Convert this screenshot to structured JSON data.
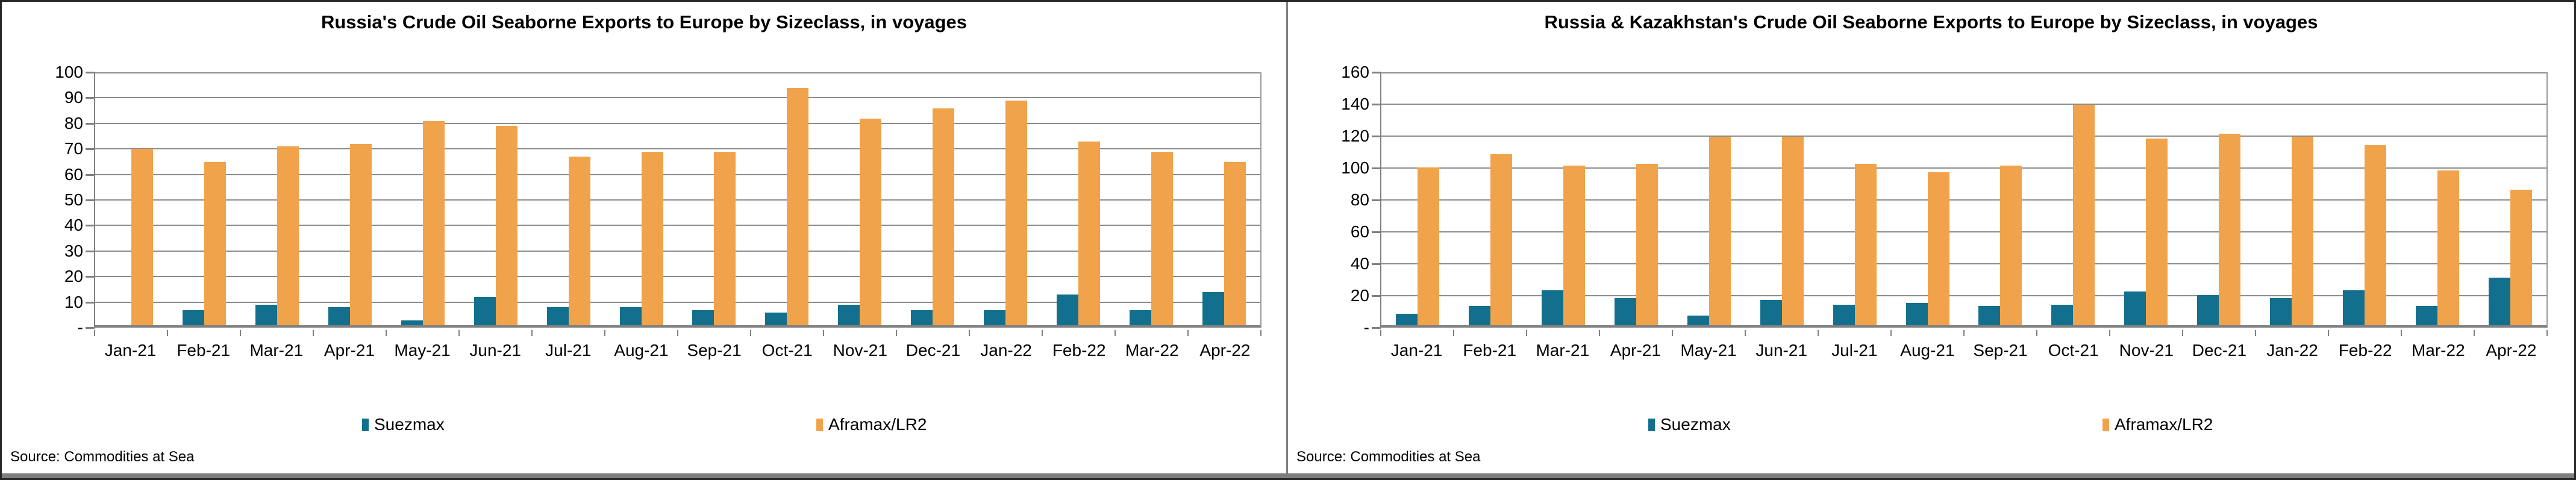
{
  "colors": {
    "suezmax": "#12708E",
    "aframax": "#F0A34A",
    "gridline": "#8C8C8C",
    "axis": "#808080"
  },
  "chart_data": [
    {
      "type": "bar",
      "title": "Russia's Crude Oil Seaborne Exports to Europe by Sizeclass, in voyages",
      "source": "Source: Commodities at Sea",
      "categories": [
        "Jan-21",
        "Feb-21",
        "Mar-21",
        "Apr-21",
        "May-21",
        "Jun-21",
        "Jul-21",
        "Aug-21",
        "Sep-21",
        "Oct-21",
        "Nov-21",
        "Dec-21",
        "Jan-22",
        "Feb-22",
        "Mar-22",
        "Apr-22"
      ],
      "series": [
        {
          "name": "Suezmax",
          "color": "#12708E",
          "values": [
            0,
            6,
            8,
            7,
            2,
            11,
            7,
            7,
            6,
            5,
            8,
            6,
            6,
            12,
            6,
            13
          ]
        },
        {
          "name": "Aframax/LR2",
          "color": "#F0A34A",
          "values": [
            69,
            64,
            70,
            71,
            80,
            78,
            66,
            68,
            68,
            93,
            81,
            85,
            88,
            72,
            68,
            64
          ]
        }
      ],
      "ylim": [
        0,
        100
      ],
      "ytick_step": 10,
      "yticklabels": [
        "-",
        "10",
        "20",
        "30",
        "40",
        "50",
        "60",
        "70",
        "80",
        "90",
        "100"
      ],
      "grid": true,
      "legend_position": "bottom"
    },
    {
      "type": "bar",
      "title": "Russia & Kazakhstan's Crude Oil Seaborne Exports to Europe by Sizeclass, in voyages",
      "source": "Source: Commodities at Sea",
      "categories": [
        "Jan-21",
        "Feb-21",
        "Mar-21",
        "Apr-21",
        "May-21",
        "Jun-21",
        "Jul-21",
        "Aug-21",
        "Sep-21",
        "Oct-21",
        "Nov-21",
        "Dec-21",
        "Jan-22",
        "Feb-22",
        "Mar-22",
        "Apr-22"
      ],
      "series": [
        {
          "name": "Suezmax",
          "color": "#12708E",
          "values": [
            7,
            12,
            22,
            17,
            6,
            16,
            13,
            14,
            12,
            13,
            21,
            19,
            17,
            22,
            12,
            30
          ]
        },
        {
          "name": "Aframax/LR2",
          "color": "#F0A34A",
          "values": [
            99,
            107,
            100,
            101,
            118,
            118,
            101,
            96,
            100,
            138,
            117,
            120,
            118,
            113,
            97,
            85
          ]
        }
      ],
      "ylim": [
        0,
        160
      ],
      "ytick_step": 20,
      "yticklabels": [
        "-",
        "20",
        "40",
        "60",
        "80",
        "100",
        "120",
        "140",
        "160"
      ],
      "grid": true,
      "legend_position": "bottom"
    }
  ]
}
